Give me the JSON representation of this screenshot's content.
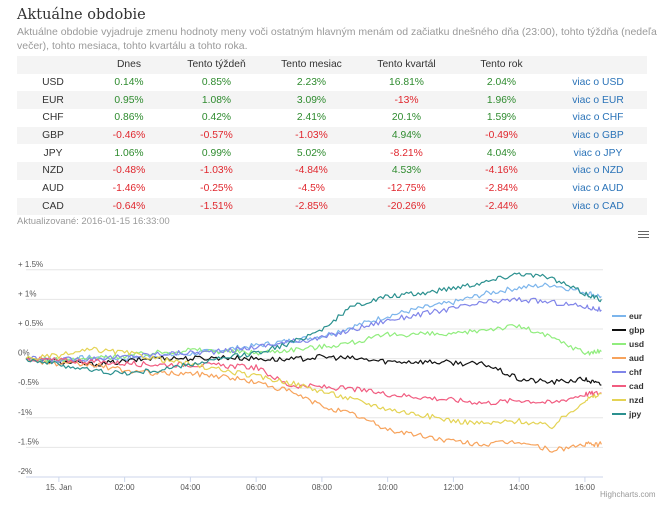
{
  "header": {
    "title": "Aktuálne obdobie",
    "subtitle": "Aktuálne obdobie vyjadruje zmenu hodnoty meny voči ostatným hlavným menám od začiatku dnešného dňa (23:00), tohto týždňa (nedeľa večer), tohto mesiaca, tohto kvartálu a tohto roka."
  },
  "table": {
    "columns": [
      "",
      "Dnes",
      "Tento týždeň",
      "Tento mesiac",
      "Tento kvartál",
      "Tento rok",
      ""
    ],
    "rows": [
      {
        "currency": "USD",
        "values": [
          "0.14%",
          "0.85%",
          "2.23%",
          "16.81%",
          "2.04%"
        ],
        "link": "viac o USD"
      },
      {
        "currency": "EUR",
        "values": [
          "0.95%",
          "1.08%",
          "3.09%",
          "-13%",
          "1.96%"
        ],
        "link": "viac o EUR"
      },
      {
        "currency": "CHF",
        "values": [
          "0.86%",
          "0.42%",
          "2.41%",
          "20.1%",
          "1.59%"
        ],
        "link": "viac o CHF"
      },
      {
        "currency": "GBP",
        "values": [
          "-0.46%",
          "-0.57%",
          "-1.03%",
          "4.94%",
          "-0.49%"
        ],
        "link": "viac o GBP"
      },
      {
        "currency": "JPY",
        "values": [
          "1.06%",
          "0.99%",
          "5.02%",
          "-8.21%",
          "4.04%"
        ],
        "link": "viac o JPY"
      },
      {
        "currency": "NZD",
        "values": [
          "-0.48%",
          "-1.03%",
          "-4.84%",
          "4.53%",
          "-4.16%"
        ],
        "link": "viac o NZD"
      },
      {
        "currency": "AUD",
        "values": [
          "-1.46%",
          "-0.25%",
          "-4.5%",
          "-12.75%",
          "-2.84%"
        ],
        "link": "viac o AUD"
      },
      {
        "currency": "CAD",
        "values": [
          "-0.64%",
          "-1.51%",
          "-2.85%",
          "-20.26%",
          "-2.44%"
        ],
        "link": "viac o CAD"
      }
    ]
  },
  "updated": "Aktualizované: 2016-01-15 16:33:00",
  "credits": "Highcharts.com",
  "colors": {
    "positive": "#2e8b2e",
    "negative": "#e0262d",
    "link": "#2a73b8"
  },
  "chart_data": {
    "type": "line",
    "title": "",
    "xlabel": "",
    "ylabel": "",
    "ylim": [
      -2,
      1.75
    ],
    "y_ticks": [
      1.5,
      1,
      0.5,
      0,
      -0.5,
      -1,
      -1.5,
      -2
    ],
    "y_tick_labels": [
      "+ 1.5%",
      "+ 1%",
      "+ 0.5%",
      "0%",
      "-0.5%",
      "-1%",
      "-1.5%",
      "-2%"
    ],
    "x_ticks": [
      0,
      2,
      4,
      6,
      8,
      10,
      12,
      14,
      16
    ],
    "x_tick_labels": [
      "15. Jan",
      "02:00",
      "04:00",
      "06:00",
      "08:00",
      "10:00",
      "12:00",
      "14:00",
      "16:00"
    ],
    "xlim": [
      -1,
      16.55
    ],
    "legend_position": "right",
    "series": [
      {
        "name": "eur",
        "color": "#7cb5ec",
        "x": [
          -1,
          0,
          1,
          2,
          3,
          4,
          5,
          6,
          7,
          8,
          9,
          10,
          11,
          12,
          13,
          14,
          15,
          16,
          16.5
        ],
        "values": [
          0,
          -0.02,
          0.02,
          0.0,
          0.05,
          0.08,
          0.15,
          0.22,
          0.3,
          0.38,
          0.55,
          0.72,
          0.85,
          0.95,
          1.1,
          1.2,
          1.25,
          1.12,
          1.05
        ]
      },
      {
        "name": "gbp",
        "color": "#111111",
        "x": [
          -1,
          0,
          1,
          2,
          3,
          4,
          5,
          6,
          7,
          8,
          9,
          10,
          11,
          12,
          13,
          14,
          15,
          16,
          16.5
        ],
        "values": [
          0,
          -0.05,
          -0.1,
          -0.05,
          0.02,
          0.0,
          0.02,
          0.0,
          -0.02,
          0.03,
          0.0,
          -0.05,
          -0.05,
          -0.07,
          -0.1,
          -0.35,
          -0.4,
          -0.35,
          -0.45
        ]
      },
      {
        "name": "usd",
        "color": "#90ed7d",
        "x": [
          -1,
          0,
          1,
          2,
          3,
          4,
          5,
          6,
          7,
          8,
          9,
          10,
          11,
          12,
          13,
          14,
          15,
          16,
          16.5
        ],
        "values": [
          0,
          -0.03,
          0.0,
          0.05,
          0.1,
          0.15,
          0.12,
          0.1,
          0.15,
          0.2,
          0.28,
          0.4,
          0.42,
          0.4,
          0.5,
          0.55,
          0.35,
          0.1,
          0.12
        ]
      },
      {
        "name": "aud",
        "color": "#f7a35c",
        "x": [
          -1,
          0,
          1,
          2,
          3,
          4,
          5,
          6,
          7,
          8,
          9,
          10,
          11,
          12,
          13,
          14,
          15,
          16,
          16.5
        ],
        "values": [
          0,
          -0.1,
          -0.1,
          -0.2,
          -0.25,
          -0.25,
          -0.3,
          -0.4,
          -0.55,
          -0.8,
          -0.95,
          -1.2,
          -1.3,
          -1.4,
          -1.45,
          -1.4,
          -1.55,
          -1.45,
          -1.45
        ]
      },
      {
        "name": "chf",
        "color": "#8085e9",
        "x": [
          -1,
          0,
          1,
          2,
          3,
          4,
          5,
          6,
          7,
          8,
          9,
          10,
          11,
          12,
          13,
          14,
          15,
          16,
          16.5
        ],
        "values": [
          0,
          -0.02,
          0.0,
          0.03,
          0.08,
          0.1,
          0.12,
          0.2,
          0.28,
          0.35,
          0.5,
          0.65,
          0.75,
          0.85,
          0.95,
          1.0,
          0.95,
          0.88,
          0.82
        ]
      },
      {
        "name": "cad",
        "color": "#f15c80",
        "x": [
          -1,
          0,
          1,
          2,
          3,
          4,
          5,
          6,
          7,
          8,
          9,
          10,
          11,
          12,
          13,
          14,
          15,
          16,
          16.5
        ],
        "values": [
          0,
          -0.03,
          -0.05,
          -0.08,
          -0.1,
          -0.1,
          -0.12,
          -0.15,
          -0.45,
          -0.48,
          -0.52,
          -0.6,
          -0.65,
          -0.7,
          -0.75,
          -0.7,
          -0.75,
          -0.6,
          -0.58
        ]
      },
      {
        "name": "nzd",
        "color": "#e4d354",
        "x": [
          -1,
          0,
          1,
          2,
          3,
          4,
          5,
          6,
          7,
          8,
          9,
          10,
          11,
          12,
          13,
          14,
          15,
          16,
          16.5
        ],
        "values": [
          0,
          0.05,
          0.15,
          0.1,
          0.0,
          -0.1,
          -0.2,
          -0.3,
          -0.4,
          -0.55,
          -0.7,
          -0.85,
          -0.95,
          -1.05,
          -1.1,
          -1.05,
          -1.15,
          -0.7,
          -0.6
        ]
      },
      {
        "name": "jpy",
        "color": "#2b908f",
        "x": [
          -1,
          0,
          1,
          2,
          3,
          4,
          5,
          6,
          7,
          8,
          9,
          10,
          11,
          12,
          13,
          14,
          15,
          16,
          16.5
        ],
        "values": [
          0,
          -0.1,
          -0.2,
          -0.25,
          -0.2,
          -0.1,
          0.0,
          0.1,
          0.25,
          0.5,
          0.9,
          1.05,
          1.1,
          1.2,
          1.3,
          1.45,
          1.35,
          1.1,
          1.0
        ]
      }
    ]
  }
}
